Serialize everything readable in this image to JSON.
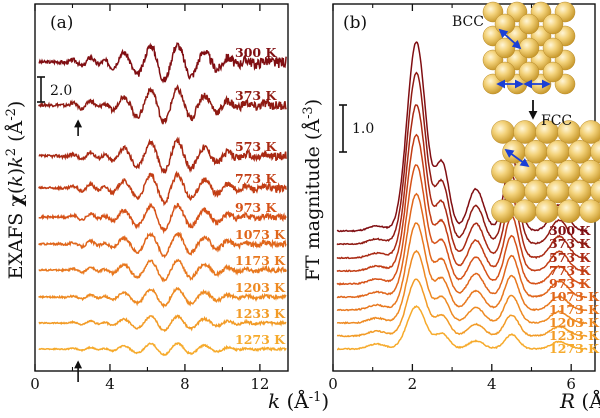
{
  "figure": {
    "panel_a_label": "(a)",
    "panel_b_label": "(b)"
  },
  "chart_data": [
    {
      "type": "line",
      "panel": "(a)",
      "title": "",
      "ylabel_parts": [
        "EXAFS ",
        "χ",
        "(",
        "k",
        ")",
        "k",
        "2",
        " (Å",
        "-2",
        ")"
      ],
      "xlabel_parts": [
        "k",
        " (Å",
        "-1",
        ")"
      ],
      "xlim": [
        0,
        13.5
      ],
      "xticks": [
        0,
        4,
        8,
        12
      ],
      "xtick_labels": [
        "0",
        "4",
        "8",
        "12"
      ],
      "minor_xticks": [
        2,
        6,
        10
      ],
      "scale_bar_label": "2.0",
      "arrow_positions_k": [
        2.3,
        2.3
      ],
      "series": [
        {
          "name": "300 K",
          "color": "#800e12"
        },
        {
          "name": "373 K",
          "color": "#8f1a12"
        },
        {
          "name": "573 K",
          "color": "#a92913"
        },
        {
          "name": "773 K",
          "color": "#c23d14"
        },
        {
          "name": "973 K",
          "color": "#d65218"
        },
        {
          "name": "1073 K",
          "color": "#e0661b"
        },
        {
          "name": "1173 K",
          "color": "#e8781e"
        },
        {
          "name": "1203 K",
          "color": "#ee8a22"
        },
        {
          "name": "1233 K",
          "color": "#f29b26"
        },
        {
          "name": "1273 K",
          "color": "#f6aa2b"
        }
      ]
    },
    {
      "type": "line",
      "panel": "(b)",
      "title": "",
      "ylabel_parts": [
        "FT magnitude (Å",
        "-3",
        ")"
      ],
      "xlabel_parts": [
        "R",
        " (Å)"
      ],
      "xlim": [
        0,
        6.6
      ],
      "xticks": [
        0,
        2,
        4,
        6
      ],
      "xtick_labels": [
        "0",
        "2",
        "4",
        "6"
      ],
      "minor_xticks": [
        1,
        3,
        5
      ],
      "scale_bar_label": "1.0",
      "peak_positions_R": [
        2.1,
        3.6,
        4.5,
        5.7
      ],
      "series": [
        {
          "name": "300 K",
          "color": "#800e12"
        },
        {
          "name": "373 K",
          "color": "#8f1a12"
        },
        {
          "name": "573 K",
          "color": "#a92913"
        },
        {
          "name": "773 K",
          "color": "#c23d14"
        },
        {
          "name": "973 K",
          "color": "#d65218"
        },
        {
          "name": "1073 K",
          "color": "#e0661b"
        },
        {
          "name": "1173 K",
          "color": "#e8781e"
        },
        {
          "name": "1203 K",
          "color": "#ee8a22"
        },
        {
          "name": "1233 K",
          "color": "#f29b26"
        },
        {
          "name": "1273 K",
          "color": "#f6aa2b"
        }
      ],
      "inset": {
        "top_label": "BCC",
        "bottom_label": "FCC",
        "sphere_color": "#f3d27a",
        "arrow_color": "#1a3fd6"
      }
    }
  ]
}
